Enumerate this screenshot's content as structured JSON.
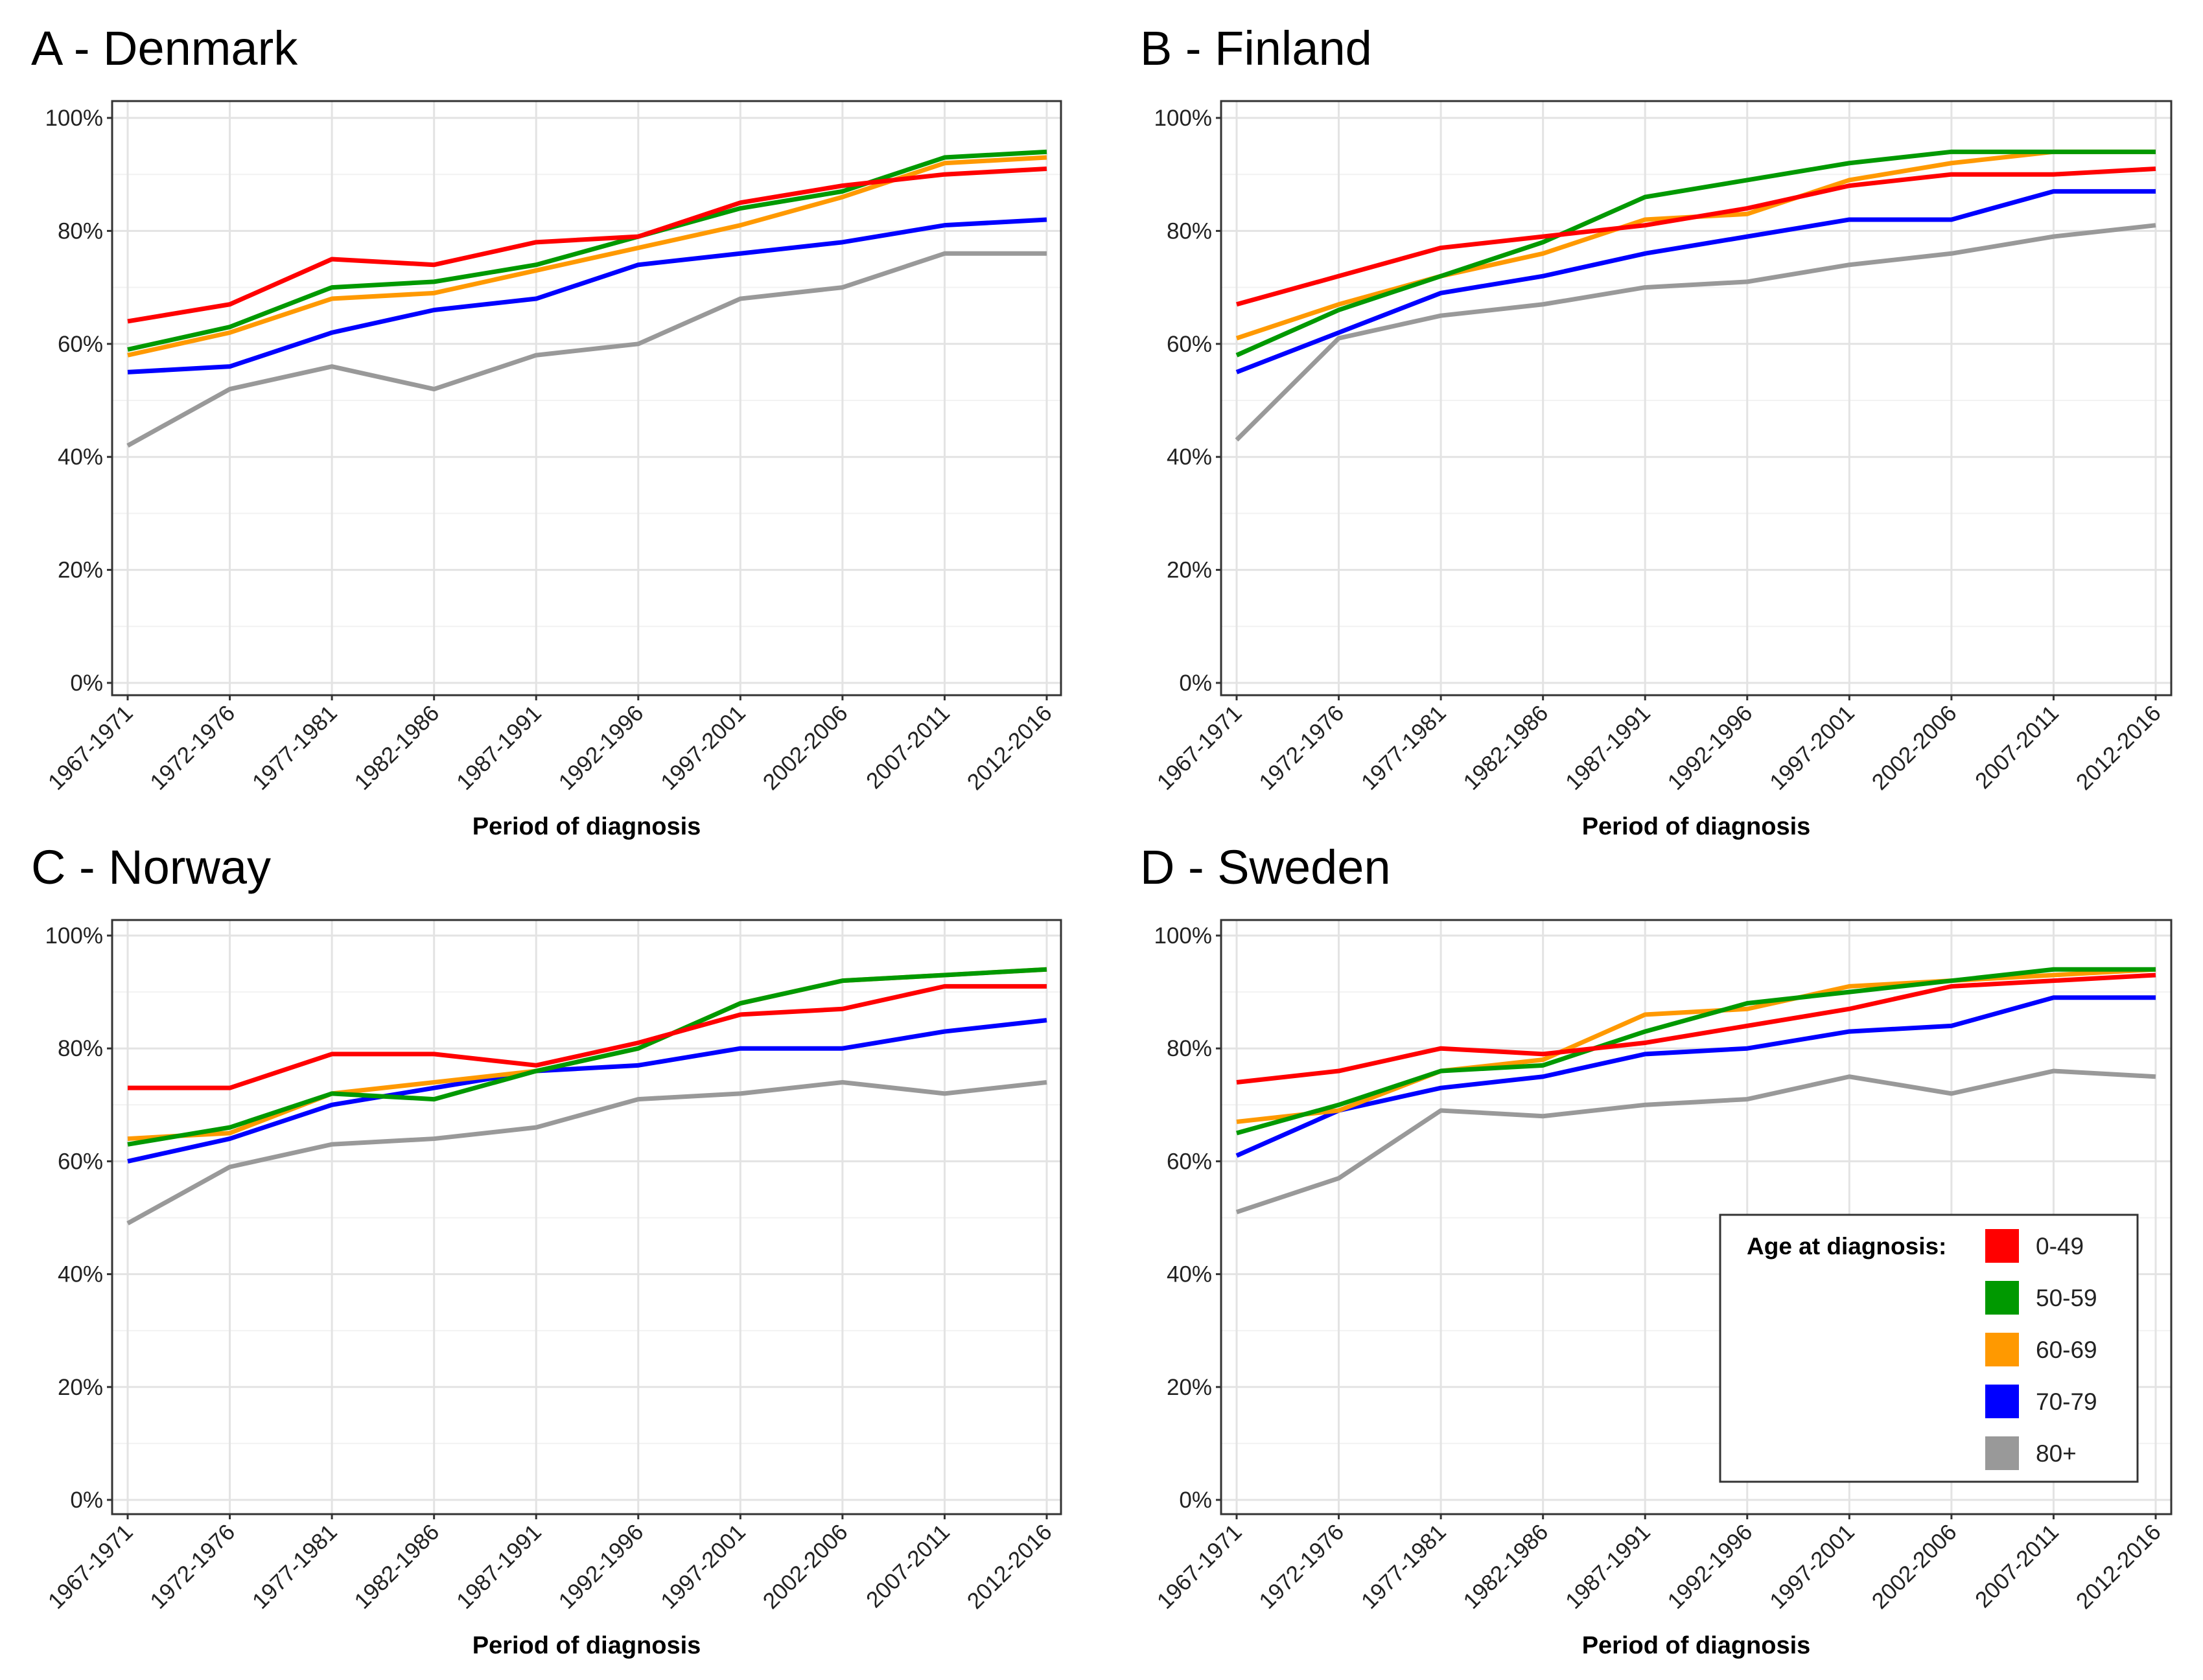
{
  "legend": {
    "title": "Age at diagnosis:",
    "placement": "inside-bottom-right of panel D",
    "entries": [
      {
        "name": "0-49",
        "color": "#ff0000"
      },
      {
        "name": "50-59",
        "color": "#009900"
      },
      {
        "name": "60-69",
        "color": "#ff9900"
      },
      {
        "name": "70-79",
        "color": "#0000ff"
      },
      {
        "name": "80+",
        "color": "#999999"
      }
    ]
  },
  "chart_data": [
    {
      "type": "line",
      "title": "A - Denmark",
      "xlabel": "Period of diagnosis",
      "ylabel": "",
      "ylim": [
        0,
        100
      ],
      "yticks": [
        "0%",
        "20%",
        "40%",
        "60%",
        "80%",
        "100%"
      ],
      "grid": true,
      "categories": [
        "1967-1971",
        "1972-1976",
        "1977-1981",
        "1982-1986",
        "1987-1991",
        "1992-1996",
        "1997-2001",
        "2002-2006",
        "2007-2011",
        "2012-2016"
      ],
      "series": [
        {
          "name": "0-49",
          "values": [
            64,
            67,
            75,
            74,
            78,
            79,
            85,
            88,
            90,
            91
          ]
        },
        {
          "name": "50-59",
          "values": [
            59,
            63,
            70,
            71,
            74,
            79,
            84,
            87,
            93,
            94
          ]
        },
        {
          "name": "60-69",
          "values": [
            58,
            62,
            68,
            69,
            73,
            77,
            81,
            86,
            92,
            93
          ]
        },
        {
          "name": "70-79",
          "values": [
            55,
            56,
            62,
            66,
            68,
            74,
            76,
            78,
            81,
            82
          ]
        },
        {
          "name": "80+",
          "values": [
            42,
            52,
            56,
            52,
            58,
            60,
            68,
            70,
            76,
            76
          ]
        }
      ]
    },
    {
      "type": "line",
      "title": "B - Finland",
      "xlabel": "Period of diagnosis",
      "ylabel": "",
      "ylim": [
        0,
        100
      ],
      "yticks": [
        "0%",
        "20%",
        "40%",
        "60%",
        "80%",
        "100%"
      ],
      "grid": true,
      "categories": [
        "1967-1971",
        "1972-1976",
        "1977-1981",
        "1982-1986",
        "1987-1991",
        "1992-1996",
        "1997-2001",
        "2002-2006",
        "2007-2011",
        "2012-2016"
      ],
      "series": [
        {
          "name": "0-49",
          "values": [
            67,
            72,
            77,
            79,
            81,
            84,
            88,
            90,
            90,
            91
          ]
        },
        {
          "name": "50-59",
          "values": [
            58,
            66,
            72,
            78,
            86,
            89,
            92,
            94,
            94,
            94
          ]
        },
        {
          "name": "60-69",
          "values": [
            61,
            67,
            72,
            76,
            82,
            83,
            89,
            92,
            94,
            94
          ]
        },
        {
          "name": "70-79",
          "values": [
            55,
            62,
            69,
            72,
            76,
            79,
            82,
            82,
            87,
            87
          ]
        },
        {
          "name": "80+",
          "values": [
            43,
            61,
            65,
            67,
            70,
            71,
            74,
            76,
            79,
            81
          ]
        }
      ]
    },
    {
      "type": "line",
      "title": "C - Norway",
      "xlabel": "Period of diagnosis",
      "ylabel": "",
      "ylim": [
        0,
        100
      ],
      "yticks": [
        "0%",
        "20%",
        "40%",
        "60%",
        "80%",
        "100%"
      ],
      "grid": true,
      "categories": [
        "1967-1971",
        "1972-1976",
        "1977-1981",
        "1982-1986",
        "1987-1991",
        "1992-1996",
        "1997-2001",
        "2002-2006",
        "2007-2011",
        "2012-2016"
      ],
      "series": [
        {
          "name": "0-49",
          "values": [
            73,
            73,
            79,
            79,
            77,
            81,
            86,
            87,
            91,
            91
          ]
        },
        {
          "name": "50-59",
          "values": [
            63,
            66,
            72,
            71,
            76,
            80,
            88,
            92,
            93,
            94
          ]
        },
        {
          "name": "60-69",
          "values": [
            64,
            65,
            72,
            74,
            76,
            80,
            88,
            92,
            93,
            94
          ]
        },
        {
          "name": "70-79",
          "values": [
            60,
            64,
            70,
            73,
            76,
            77,
            80,
            80,
            83,
            85
          ]
        },
        {
          "name": "80+",
          "values": [
            49,
            59,
            63,
            64,
            66,
            71,
            72,
            74,
            72,
            74
          ]
        }
      ]
    },
    {
      "type": "line",
      "title": "D - Sweden",
      "xlabel": "Period of diagnosis",
      "ylabel": "",
      "ylim": [
        0,
        100
      ],
      "yticks": [
        "0%",
        "20%",
        "40%",
        "60%",
        "80%",
        "100%"
      ],
      "grid": true,
      "categories": [
        "1967-1971",
        "1972-1976",
        "1977-1981",
        "1982-1986",
        "1987-1991",
        "1992-1996",
        "1997-2001",
        "2002-2006",
        "2007-2011",
        "2012-2016"
      ],
      "series": [
        {
          "name": "0-49",
          "values": [
            74,
            76,
            80,
            79,
            81,
            84,
            87,
            91,
            92,
            93
          ]
        },
        {
          "name": "50-59",
          "values": [
            65,
            70,
            76,
            77,
            83,
            88,
            90,
            92,
            94,
            94
          ]
        },
        {
          "name": "60-69",
          "values": [
            67,
            69,
            76,
            78,
            86,
            87,
            91,
            92,
            93,
            94
          ]
        },
        {
          "name": "70-79",
          "values": [
            61,
            69,
            73,
            75,
            79,
            80,
            83,
            84,
            89,
            89
          ]
        },
        {
          "name": "80+",
          "values": [
            51,
            57,
            69,
            68,
            70,
            71,
            75,
            72,
            76,
            75
          ]
        }
      ]
    }
  ]
}
